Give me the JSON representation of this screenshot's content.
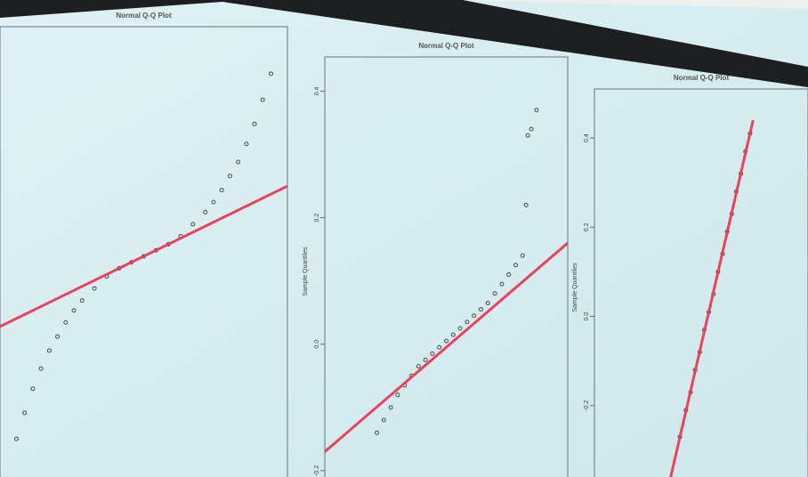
{
  "chart_data": [
    {
      "type": "scatter",
      "title": "Normal Q-Q Plot",
      "xlim": [
        -3.5,
        3.5
      ],
      "ylim": [
        -1.1,
        1.1
      ],
      "series": [
        {
          "type": "scatter",
          "color": "#4a4650",
          "x": [
            -3.1,
            -2.9,
            -2.7,
            -2.5,
            -2.3,
            -2.1,
            -1.9,
            -1.7,
            -1.5,
            -1.2,
            -0.9,
            -0.6,
            -0.3,
            0,
            0.3,
            0.6,
            0.9,
            1.2,
            1.5,
            1.7,
            1.9,
            2.1,
            2.3,
            2.5,
            2.7,
            2.9,
            3.1
          ],
          "values": [
            -0.91,
            -0.78,
            -0.66,
            -0.56,
            -0.47,
            -0.4,
            -0.33,
            -0.27,
            -0.22,
            -0.16,
            -0.1,
            -0.06,
            -0.03,
            0,
            0.03,
            0.06,
            0.1,
            0.16,
            0.22,
            0.27,
            0.33,
            0.4,
            0.47,
            0.56,
            0.66,
            0.78,
            0.91
          ]
        },
        {
          "type": "line",
          "color": "#e8435a",
          "x": [
            -3.5,
            3.5
          ],
          "values": [
            -0.35,
            0.35
          ]
        }
      ]
    },
    {
      "type": "scatter",
      "title": "Normal Q-Q Plot",
      "ylabel": "Sample Quantiles",
      "xlim": [
        -3.5,
        3.5
      ],
      "ylim": [
        -0.21,
        0.44
      ],
      "yticks": [
        -0.2,
        {
          "value": 0,
          "label": "0.0"
        },
        0.2,
        0.4
      ],
      "series": [
        {
          "type": "scatter",
          "color": "#4a4650",
          "x": [
            -2.0,
            -1.8,
            -1.6,
            -1.4,
            -1.2,
            -1.0,
            -0.8,
            -0.6,
            -0.4,
            -0.2,
            0,
            0.2,
            0.4,
            0.6,
            0.8,
            1.0,
            1.2,
            1.4,
            1.6,
            1.8,
            2.0,
            2.2,
            2.3,
            2.35,
            2.45,
            2.6
          ],
          "values": [
            -0.14,
            -0.12,
            -0.1,
            -0.08,
            -0.065,
            -0.05,
            -0.035,
            -0.025,
            -0.015,
            -0.005,
            0.005,
            0.015,
            0.025,
            0.035,
            0.045,
            0.055,
            0.065,
            0.08,
            0.095,
            0.11,
            0.125,
            0.14,
            0.22,
            0.33,
            0.34,
            0.37
          ]
        },
        {
          "type": "line",
          "color": "#e8435a",
          "x": [
            -3.5,
            3.5
          ],
          "values": [
            -0.17,
            0.16
          ]
        }
      ]
    },
    {
      "type": "scatter",
      "title": "Normal Q-Q Plot",
      "ylabel": "Sample Quantiles",
      "xlim": [
        -3.5,
        3.5
      ],
      "ylim": [
        -0.36,
        0.49
      ],
      "yticks": [
        -0.2,
        {
          "value": 0,
          "label": "0.0"
        },
        0.2,
        0.4
      ],
      "series": [
        {
          "type": "scatter",
          "color": "#4a4650",
          "x": [
            -0.7,
            -0.5,
            -0.35,
            -0.2,
            -0.05,
            0.1,
            0.25,
            0.4,
            0.55,
            0.7,
            0.85,
            1.0,
            1.15,
            1.3,
            1.45,
            1.6
          ],
          "values": [
            -0.27,
            -0.21,
            -0.17,
            -0.12,
            -0.08,
            -0.03,
            0.01,
            0.05,
            0.1,
            0.14,
            0.19,
            0.23,
            0.28,
            0.32,
            0.37,
            0.41
          ]
        },
        {
          "type": "line",
          "color": "#e8435a",
          "x": [
            -1,
            1.7
          ],
          "values": [
            -0.36,
            0.44
          ]
        }
      ]
    }
  ]
}
